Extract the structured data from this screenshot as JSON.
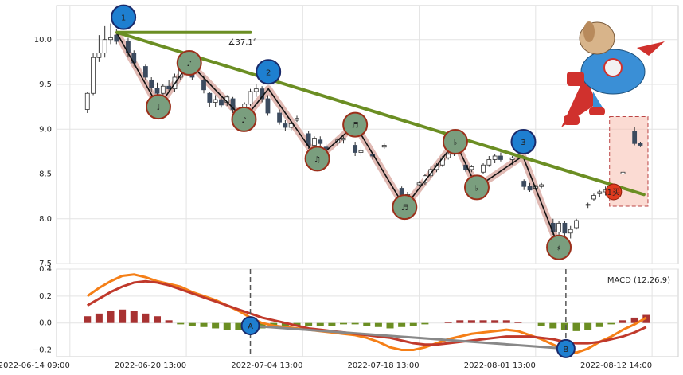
{
  "chart_data": [
    {
      "type": "candlestick",
      "xlim": [
        -2.3,
        104.5
      ],
      "ylim": [
        7.5,
        10.38
      ],
      "yticks": [
        {
          "value": 10,
          "label": "10.0"
        },
        9.5,
        {
          "value": 9,
          "label": "9.0"
        },
        8.5,
        {
          "value": 8,
          "label": "8.0"
        },
        7.5
      ],
      "grid": true,
      "up_color": "#ffffff",
      "down_color": "#3c4b5f",
      "candles": [
        [
          3,
          9.22,
          9.42,
          9.18,
          9.4
        ],
        [
          4,
          9.4,
          9.85,
          9.38,
          9.8
        ],
        [
          5,
          9.8,
          10.05,
          9.75,
          9.85
        ],
        [
          6,
          9.85,
          10.15,
          9.8,
          10.0
        ],
        [
          7,
          10.0,
          10.18,
          9.95,
          10.02
        ],
        [
          8,
          10.05,
          10.12,
          9.95,
          9.98
        ],
        [
          10,
          9.98,
          10.02,
          9.8,
          9.85
        ],
        [
          11,
          9.85,
          9.88,
          9.7,
          9.74
        ],
        [
          13,
          9.7,
          9.72,
          9.55,
          9.58
        ],
        [
          14,
          9.55,
          9.58,
          9.42,
          9.46
        ],
        [
          15,
          9.46,
          9.52,
          9.36,
          9.4
        ],
        [
          16,
          9.4,
          9.5,
          9.36,
          9.48
        ],
        [
          17,
          9.48,
          9.55,
          9.42,
          9.45
        ],
        [
          18,
          9.45,
          9.62,
          9.42,
          9.58
        ],
        [
          19,
          9.58,
          9.72,
          9.55,
          9.7
        ],
        [
          20,
          9.7,
          9.75,
          9.62,
          9.65
        ],
        [
          21,
          9.65,
          9.7,
          9.55,
          9.58
        ],
        [
          23,
          9.55,
          9.6,
          9.4,
          9.44
        ],
        [
          24,
          9.4,
          9.42,
          9.25,
          9.3
        ],
        [
          25,
          9.3,
          9.38,
          9.25,
          9.33
        ],
        [
          26,
          9.33,
          9.36,
          9.24,
          9.27
        ],
        [
          27,
          9.3,
          9.38,
          9.26,
          9.36
        ],
        [
          28,
          9.34,
          9.36,
          9.18,
          9.22
        ],
        [
          30,
          9.22,
          9.3,
          9.18,
          9.28
        ],
        [
          31,
          9.28,
          9.45,
          9.26,
          9.42
        ],
        [
          32,
          9.42,
          9.5,
          9.36,
          9.45
        ],
        [
          33,
          9.45,
          9.48,
          9.3,
          9.34
        ],
        [
          34,
          9.34,
          9.38,
          9.15,
          9.18
        ],
        [
          36,
          9.18,
          9.22,
          9.05,
          9.08
        ],
        [
          37,
          9.06,
          9.1,
          8.98,
          9.02
        ],
        [
          38,
          9.02,
          9.08,
          8.98,
          9.06
        ],
        [
          39,
          9.1,
          9.15,
          9.08,
          9.12
        ],
        [
          41,
          8.95,
          8.98,
          8.78,
          8.82
        ],
        [
          42,
          8.82,
          8.92,
          8.76,
          8.9
        ],
        [
          43,
          8.88,
          8.92,
          8.8,
          8.84
        ],
        [
          44,
          8.8,
          8.84,
          8.76,
          8.78
        ],
        [
          46,
          8.85,
          8.9,
          8.82,
          8.88
        ],
        [
          47,
          8.88,
          8.92,
          8.84,
          8.9
        ],
        [
          49,
          8.82,
          8.86,
          8.7,
          8.74
        ],
        [
          50,
          8.74,
          8.8,
          8.7,
          8.76
        ],
        [
          52,
          8.72,
          8.74,
          8.66,
          8.7
        ],
        [
          54,
          8.8,
          8.84,
          8.78,
          8.82
        ],
        [
          57,
          8.34,
          8.36,
          8.22,
          8.25
        ],
        [
          58,
          8.25,
          8.3,
          8.2,
          8.27
        ],
        [
          60,
          8.38,
          8.42,
          8.36,
          8.4
        ],
        [
          61,
          8.4,
          8.5,
          8.38,
          8.48
        ],
        [
          62,
          8.48,
          8.58,
          8.45,
          8.55
        ],
        [
          63,
          8.55,
          8.62,
          8.52,
          8.6
        ],
        [
          64,
          8.6,
          8.7,
          8.58,
          8.68
        ],
        [
          65,
          8.68,
          8.74,
          8.66,
          8.72
        ],
        [
          66,
          8.72,
          8.8,
          8.7,
          8.76
        ],
        [
          68,
          8.6,
          8.62,
          8.52,
          8.55
        ],
        [
          69,
          8.55,
          8.6,
          8.52,
          8.58
        ],
        [
          71,
          8.52,
          8.62,
          8.5,
          8.6
        ],
        [
          72,
          8.6,
          8.7,
          8.58,
          8.66
        ],
        [
          73,
          8.66,
          8.72,
          8.62,
          8.7
        ],
        [
          74,
          8.7,
          8.74,
          8.64,
          8.66
        ],
        [
          76,
          8.66,
          8.7,
          8.6,
          8.68
        ],
        [
          78,
          8.42,
          8.44,
          8.32,
          8.36
        ],
        [
          79,
          8.36,
          8.4,
          8.3,
          8.32
        ],
        [
          80,
          8.34,
          8.38,
          8.32,
          8.36
        ],
        [
          81,
          8.36,
          8.4,
          8.34,
          8.38
        ],
        [
          83,
          7.95,
          8.0,
          7.82,
          7.85
        ],
        [
          84,
          7.85,
          7.98,
          7.82,
          7.95
        ],
        [
          85,
          7.95,
          7.98,
          7.8,
          7.84
        ],
        [
          86,
          7.84,
          7.92,
          7.78,
          7.88
        ],
        [
          87,
          7.9,
          8.0,
          7.88,
          7.98
        ],
        [
          89,
          8.15,
          8.18,
          8.12,
          8.16
        ],
        [
          90,
          8.22,
          8.28,
          8.2,
          8.26
        ],
        [
          91,
          8.28,
          8.32,
          8.24,
          8.3
        ],
        [
          92,
          8.3,
          8.36,
          8.26,
          8.32
        ],
        [
          93,
          8.32,
          8.34,
          8.24,
          8.28
        ],
        [
          95,
          8.5,
          8.54,
          8.48,
          8.52
        ],
        [
          97,
          8.98,
          9.02,
          8.82,
          8.84
        ],
        [
          98,
          8.84,
          8.86,
          8.8,
          8.82
        ]
      ],
      "zigzag": {
        "x": [
          8.1,
          15.2,
          20.5,
          29.9,
          34.1,
          42.5,
          49.0,
          57.5,
          66.2,
          69.9,
          77.8,
          84.0
        ],
        "y": [
          10.07,
          9.25,
          9.74,
          9.11,
          9.45,
          8.67,
          9.05,
          8.13,
          8.86,
          8.35,
          8.7,
          7.68
        ]
      },
      "notes": {
        "labels": [
          "♩",
          "♪",
          "♪",
          "♫",
          "♬",
          "♬",
          "♭",
          "♭",
          "♯"
        ],
        "x": [
          15.2,
          20.5,
          29.9,
          42.5,
          49.0,
          57.5,
          66.2,
          69.9,
          84.0
        ],
        "y": [
          9.25,
          9.74,
          9.11,
          8.67,
          9.05,
          8.13,
          8.86,
          8.35,
          7.68
        ]
      },
      "waves": {
        "labels": [
          "1",
          "2",
          "3"
        ],
        "x": [
          9.2,
          34.1,
          77.9
        ],
        "y": [
          10.25,
          9.64,
          8.86
        ]
      },
      "angle_line": {
        "x": [
          8.1,
          31.0
        ],
        "y": [
          10.08,
          10.08
        ]
      },
      "trend_line": {
        "x": [
          8.1,
          98.6
        ],
        "y": [
          10.08,
          8.27
        ]
      },
      "angle_label": "∡37.1°",
      "line_color": "#6b8e23",
      "signal": {
        "label": "1买",
        "x": 93.4,
        "y": 8.3,
        "box_x": [
          92.7,
          99.3
        ],
        "box_y": [
          8.14,
          9.14
        ]
      }
    },
    {
      "type": "macd",
      "label": "MACD (12,26,9)",
      "xlim": [
        -2.3,
        104.5
      ],
      "ylim": [
        -0.25,
        0.4
      ],
      "xticks": [
        {
          "value": 0,
          "label": "2022-06-14 09:00"
        },
        {
          "value": 20,
          "label": "2022-06-20 13:00"
        },
        {
          "value": 40,
          "label": "2022-07-04 13:00"
        },
        {
          "value": 60,
          "label": "2022-07-18 13:00"
        },
        {
          "value": 80,
          "label": "2022-08-01 13:00"
        },
        {
          "value": 100,
          "label": "2022-08-12 14:00"
        }
      ],
      "yticks": [
        0.4,
        0.2,
        {
          "value": 0,
          "label": "0.0"
        },
        {
          "value": -0.2,
          "label": "−0.2"
        }
      ],
      "grid": true,
      "x": [
        3,
        5,
        7,
        9,
        11,
        13,
        15,
        17,
        19,
        21,
        23,
        25,
        27,
        29,
        31,
        33,
        35,
        37,
        39,
        41,
        43,
        45,
        47,
        49,
        51,
        53,
        55,
        57,
        59,
        61,
        63,
        65,
        67,
        69,
        71,
        73,
        75,
        77,
        79,
        81,
        83,
        85,
        87,
        89,
        91,
        93,
        95,
        97,
        99
      ],
      "hist": [
        0.05,
        0.07,
        0.09,
        0.1,
        0.09,
        0.07,
        0.05,
        0.02,
        -0.01,
        -0.02,
        -0.03,
        -0.04,
        -0.05,
        -0.05,
        -0.05,
        -0.04,
        -0.03,
        -0.03,
        -0.02,
        -0.02,
        -0.02,
        -0.02,
        -0.01,
        -0.01,
        -0.02,
        -0.03,
        -0.04,
        -0.03,
        -0.02,
        -0.01,
        0.0,
        0.01,
        0.02,
        0.02,
        0.02,
        0.02,
        0.02,
        0.01,
        0.0,
        -0.02,
        -0.04,
        -0.05,
        -0.06,
        -0.05,
        -0.03,
        -0.01,
        0.02,
        0.04,
        0.06
      ],
      "hist_colors": [
        "#a83232",
        "#6b8e23"
      ],
      "series": [
        {
          "color": "#f57f17",
          "values": [
            0.2,
            0.26,
            0.31,
            0.35,
            0.36,
            0.34,
            0.31,
            0.29,
            0.27,
            0.23,
            0.2,
            0.17,
            0.13,
            0.09,
            0.04,
            0.0,
            -0.02,
            -0.03,
            -0.04,
            -0.05,
            -0.06,
            -0.07,
            -0.08,
            -0.09,
            -0.11,
            -0.14,
            -0.18,
            -0.2,
            -0.2,
            -0.18,
            -0.15,
            -0.12,
            -0.1,
            -0.08,
            -0.07,
            -0.06,
            -0.05,
            -0.06,
            -0.09,
            -0.12,
            -0.16,
            -0.2,
            -0.22,
            -0.19,
            -0.14,
            -0.1,
            -0.05,
            -0.01,
            0.04
          ]
        },
        {
          "color": "#c0392b",
          "values": [
            0.13,
            0.18,
            0.23,
            0.27,
            0.3,
            0.31,
            0.3,
            0.28,
            0.25,
            0.22,
            0.19,
            0.16,
            0.13,
            0.1,
            0.07,
            0.04,
            0.02,
            0.0,
            -0.02,
            -0.04,
            -0.05,
            -0.06,
            -0.07,
            -0.08,
            -0.09,
            -0.1,
            -0.11,
            -0.13,
            -0.15,
            -0.16,
            -0.16,
            -0.15,
            -0.14,
            -0.13,
            -0.12,
            -0.11,
            -0.1,
            -0.1,
            -0.1,
            -0.11,
            -0.12,
            -0.14,
            -0.15,
            -0.15,
            -0.14,
            -0.12,
            -0.1,
            -0.07,
            -0.03
          ]
        }
      ],
      "markers": {
        "labels": [
          "A",
          "B"
        ],
        "x": [
          31.0,
          85.2
        ],
        "y": [
          -0.02,
          -0.19
        ]
      }
    }
  ]
}
